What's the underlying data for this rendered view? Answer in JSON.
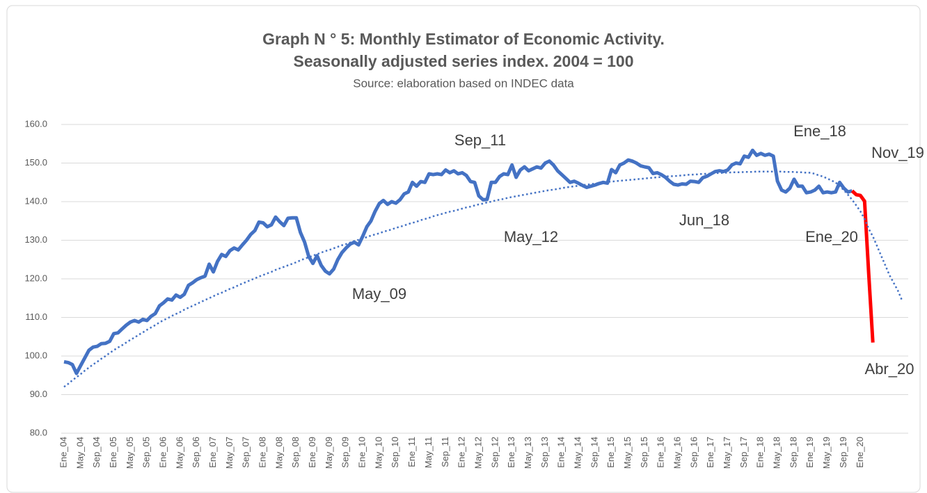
{
  "chart_data": {
    "type": "line",
    "title": [
      "Graph N ° 5: Monthly Estimator of Economic Activity.",
      "Seasonally adjusted series index. 2004 = 100"
    ],
    "subtitle": "Source: elaboration based on INDEC data",
    "categories": [
      "Ene_04",
      null,
      null,
      null,
      "May_04",
      null,
      null,
      null,
      "Sep_04",
      null,
      null,
      null,
      "Ene_05",
      null,
      null,
      null,
      "May_05",
      null,
      null,
      null,
      "Sep_05",
      null,
      null,
      null,
      "Ene_06",
      null,
      null,
      null,
      "May_06",
      null,
      null,
      null,
      "Sep_06",
      null,
      null,
      null,
      "Ene_07",
      null,
      null,
      null,
      "May_07",
      null,
      null,
      null,
      "Sep_07",
      null,
      null,
      null,
      "Ene_08",
      null,
      null,
      null,
      "May_08",
      null,
      null,
      null,
      "Sep_08",
      null,
      null,
      null,
      "Ene_09",
      null,
      null,
      null,
      "May_09",
      null,
      null,
      null,
      "Sep_09",
      null,
      null,
      null,
      "Ene_10",
      null,
      null,
      null,
      "May_10",
      null,
      null,
      null,
      "Sep_10",
      null,
      null,
      null,
      "Ene_11",
      null,
      null,
      null,
      "May_11",
      null,
      null,
      null,
      "Sep_11",
      null,
      null,
      null,
      "Ene_12",
      null,
      null,
      null,
      "May_12",
      null,
      null,
      null,
      "Sep_12",
      null,
      null,
      null,
      "Ene_13",
      null,
      null,
      null,
      "May_13",
      null,
      null,
      null,
      "Sep_13",
      null,
      null,
      null,
      "Ene_14",
      null,
      null,
      null,
      "May_14",
      null,
      null,
      null,
      "Sep_14",
      null,
      null,
      null,
      "Ene_15",
      null,
      null,
      null,
      "May_15",
      null,
      null,
      null,
      "Sep_15",
      null,
      null,
      null,
      "Ene_16",
      null,
      null,
      null,
      "May_16",
      null,
      null,
      null,
      "Sep_16",
      null,
      null,
      null,
      "Ene_17",
      null,
      null,
      null,
      "May_17",
      null,
      null,
      null,
      "Sep_17",
      null,
      null,
      null,
      "Ene_18",
      null,
      null,
      null,
      "May_18",
      null,
      null,
      null,
      "Sep_18",
      null,
      null,
      null,
      "Ene_19",
      null,
      null,
      null,
      "May_19",
      null,
      null,
      null,
      "Sep_19",
      null,
      null,
      null,
      "Ene_20",
      null,
      null,
      null,
      null,
      null,
      null,
      null,
      null,
      null,
      null,
      null
    ],
    "series": [
      {
        "color": "#4472c4",
        "width": 5,
        "values": [
          98.5,
          98.3,
          97.8,
          95.5,
          97.5,
          99.5,
          101.5,
          102.3,
          102.5,
          103.2,
          103.3,
          103.8,
          105.8,
          106,
          107,
          108,
          108.8,
          109.2,
          108.8,
          109.5,
          109.2,
          110.3,
          111,
          113,
          113.8,
          114.8,
          114.5,
          115.8,
          115.2,
          116,
          118.3,
          119,
          119.8,
          120.3,
          120.7,
          123.8,
          121.8,
          124.5,
          126.3,
          125.8,
          127.3,
          128,
          127.5,
          128.8,
          130,
          131.5,
          132.5,
          134.7,
          134.5,
          133.5,
          134,
          136,
          134.8,
          133.8,
          135.7,
          135.8,
          135.8,
          132,
          129.5,
          125.8,
          124,
          126,
          123.5,
          122,
          121.3,
          122.5,
          125,
          126.8,
          128,
          129,
          129.5,
          128.8,
          131,
          133.5,
          135,
          137.5,
          139.5,
          140.3,
          139.3,
          140,
          139.6,
          140.5,
          142,
          142.5,
          145,
          144,
          145.2,
          145,
          147.2,
          147,
          147.2,
          147,
          148.2,
          147.5,
          148,
          147.2,
          147.5,
          146.8,
          145.2,
          145,
          141.5,
          140.5,
          140.6,
          145,
          145,
          146.5,
          147.2,
          147,
          149.5,
          146.3,
          148.2,
          149,
          148,
          148.5,
          149,
          148.7,
          150,
          150.5,
          149.5,
          148,
          147,
          146,
          145,
          145.3,
          144.8,
          144.2,
          143.7,
          144,
          144.3,
          144.7,
          145,
          144.8,
          148.3,
          147.5,
          149.5,
          150,
          150.8,
          150.5,
          150,
          149.3,
          149,
          148.8,
          147.3,
          147.5,
          147,
          146.3,
          145.3,
          144.5,
          144.3,
          144.6,
          144.5,
          145.3,
          145.2,
          145,
          146.2,
          146.6,
          147.2,
          147.8,
          148,
          147.8,
          148.2,
          149.5,
          150,
          149.8,
          151.8,
          151.5,
          153.3,
          152,
          152.5,
          152,
          152.3,
          151.8,
          145.3,
          143,
          142.5,
          143.5,
          145.8,
          144,
          144,
          142.3,
          142.5,
          143,
          144,
          142.3,
          142.5,
          142.3,
          142.5,
          145,
          143.5,
          142.5,
          142.8,
          null,
          null,
          null,
          null,
          null,
          null,
          null,
          null,
          null,
          null,
          null,
          null,
          null
        ]
      },
      {
        "color": "#ff0000",
        "width": 5,
        "values": [
          null,
          null,
          null,
          null,
          null,
          null,
          null,
          null,
          null,
          null,
          null,
          null,
          null,
          null,
          null,
          null,
          null,
          null,
          null,
          null,
          null,
          null,
          null,
          null,
          null,
          null,
          null,
          null,
          null,
          null,
          null,
          null,
          null,
          null,
          null,
          null,
          null,
          null,
          null,
          null,
          null,
          null,
          null,
          null,
          null,
          null,
          null,
          null,
          null,
          null,
          null,
          null,
          null,
          null,
          null,
          null,
          null,
          null,
          null,
          null,
          null,
          null,
          null,
          null,
          null,
          null,
          null,
          null,
          null,
          null,
          null,
          null,
          null,
          null,
          null,
          null,
          null,
          null,
          null,
          null,
          null,
          null,
          null,
          null,
          null,
          null,
          null,
          null,
          null,
          null,
          null,
          null,
          null,
          null,
          null,
          null,
          null,
          null,
          null,
          null,
          null,
          null,
          null,
          null,
          null,
          null,
          null,
          null,
          null,
          null,
          null,
          null,
          null,
          null,
          null,
          null,
          null,
          null,
          null,
          null,
          null,
          null,
          null,
          null,
          null,
          null,
          null,
          null,
          null,
          null,
          null,
          null,
          null,
          null,
          null,
          null,
          null,
          null,
          null,
          null,
          null,
          null,
          null,
          null,
          null,
          null,
          null,
          null,
          null,
          null,
          null,
          null,
          null,
          null,
          null,
          null,
          null,
          null,
          null,
          null,
          null,
          null,
          null,
          null,
          null,
          null,
          null,
          null,
          null,
          null,
          null,
          null,
          null,
          null,
          null,
          null,
          null,
          null,
          null,
          null,
          null,
          null,
          null,
          null,
          null,
          null,
          null,
          null,
          null,
          null,
          142.8,
          141.8,
          141.6,
          140.1,
          121.5,
          103.5,
          null,
          null,
          null,
          null,
          null,
          null,
          null,
          null
        ]
      },
      {
        "color": "#4472c4",
        "width": 2.5,
        "dash": "dotted",
        "values": [
          92,
          92.8,
          93.7,
          94.5,
          95.3,
          96.2,
          97,
          97.8,
          98.5,
          99.3,
          100,
          100.8,
          101.5,
          102.2,
          102.8,
          103.5,
          104.2,
          104.8,
          105.5,
          106.1,
          106.8,
          107.4,
          108,
          108.7,
          109.3,
          109.8,
          110.4,
          110.9,
          111.4,
          112,
          112.5,
          113,
          113.5,
          114,
          114.5,
          115,
          115.5,
          116,
          116.4,
          116.9,
          117.4,
          117.8,
          118.3,
          118.8,
          119.2,
          119.7,
          120.1,
          120.6,
          121,
          121.4,
          121.8,
          122.3,
          122.7,
          123.1,
          123.5,
          123.9,
          124.3,
          124.8,
          125.2,
          125.6,
          126,
          126.4,
          126.8,
          127.2,
          127.5,
          127.9,
          128.3,
          128.7,
          129,
          129.4,
          129.8,
          130.1,
          130.5,
          130.8,
          131.2,
          131.5,
          131.8,
          132.2,
          132.5,
          132.8,
          133.2,
          133.5,
          133.8,
          134.2,
          134.5,
          134.8,
          135.2,
          135.5,
          135.8,
          136.2,
          136.5,
          136.8,
          137.1,
          137.4,
          137.6,
          137.9,
          138.2,
          138.5,
          138.7,
          139,
          139.3,
          139.5,
          139.8,
          140,
          140.3,
          140.5,
          140.7,
          141,
          141.2,
          141.4,
          141.6,
          141.8,
          142,
          142.2,
          142.4,
          142.6,
          142.8,
          143,
          143.1,
          143.3,
          143.5,
          143.7,
          143.8,
          144,
          144.1,
          144.3,
          144.4,
          144.5,
          144.7,
          144.8,
          144.9,
          145.1,
          145.2,
          145.3,
          145.4,
          145.5,
          145.6,
          145.7,
          145.8,
          145.9,
          146,
          146.1,
          146.2,
          146.3,
          146.4,
          146.5,
          146.6,
          146.6,
          146.7,
          146.8,
          146.9,
          147,
          147,
          147.1,
          147.2,
          147.2,
          147.3,
          147.4,
          147.4,
          147.5,
          147.5,
          147.6,
          147.6,
          147.6,
          147.7,
          147.7,
          147.7,
          147.8,
          147.8,
          147.8,
          147.8,
          147.8,
          147.8,
          147.8,
          147.7,
          147.7,
          147.7,
          147.6,
          147.6,
          147.5,
          147.5,
          147.2,
          146.8,
          146.5,
          146,
          145.5,
          145,
          144,
          143,
          141.8,
          140.5,
          139,
          137.5,
          135.5,
          133,
          131,
          128.5,
          126,
          123.5,
          121,
          119,
          117,
          114.5,
          null
        ]
      }
    ],
    "annotations": [
      "Sep_11",
      "Ene_18",
      "Nov_19",
      "May_12",
      "Jun_18",
      "Ene_20",
      "May_09",
      "Abr_20"
    ],
    "ylim": [
      80,
      160
    ],
    "yticks": [
      {
        "value": 80,
        "label": "80.0"
      },
      {
        "value": 90,
        "label": "90.0"
      },
      {
        "value": 100,
        "label": "100.0"
      },
      {
        "value": 110,
        "label": "110.0"
      },
      {
        "value": 120,
        "label": "120.0"
      },
      {
        "value": 130,
        "label": "130.0"
      },
      {
        "value": 140,
        "label": "140.0"
      },
      {
        "value": 150,
        "label": "150.0"
      },
      {
        "value": 160,
        "label": "160.0"
      }
    ],
    "grid": true
  }
}
